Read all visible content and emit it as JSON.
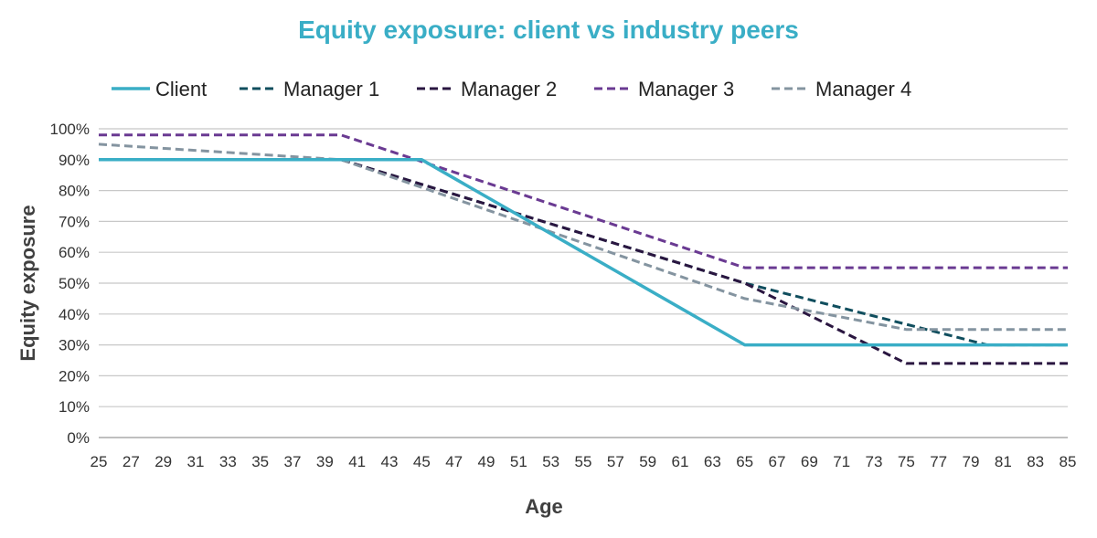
{
  "chart_data": {
    "type": "line",
    "title": "Equity exposure: client vs industry peers",
    "xlabel": "Age",
    "ylabel": "Equity exposure",
    "x_ticks": [
      25,
      27,
      29,
      31,
      33,
      35,
      37,
      39,
      41,
      43,
      45,
      47,
      49,
      51,
      53,
      55,
      57,
      59,
      61,
      63,
      65,
      67,
      69,
      71,
      73,
      75,
      77,
      79,
      81,
      83,
      85
    ],
    "xlim": [
      25,
      85
    ],
    "ylim": [
      0,
      100
    ],
    "y_ticks": [
      "0%",
      "10%",
      "20%",
      "30%",
      "40%",
      "50%",
      "60%",
      "70%",
      "80%",
      "90%",
      "100%"
    ],
    "grid": "horizontal",
    "legend_position": "top",
    "series": [
      {
        "name": "Client",
        "color": "#3aaec6",
        "style": "solid",
        "x": [
          25,
          45,
          65,
          85
        ],
        "y": [
          90,
          90,
          30,
          30
        ]
      },
      {
        "name": "Manager 1",
        "color": "#104e5e",
        "style": "dashed",
        "x": [
          25,
          40,
          65,
          80,
          85
        ],
        "y": [
          90,
          90,
          50,
          30,
          30
        ]
      },
      {
        "name": "Manager 2",
        "color": "#2a1640",
        "style": "dashed",
        "x": [
          25,
          40,
          65,
          75,
          85
        ],
        "y": [
          90,
          90,
          50,
          24,
          24
        ]
      },
      {
        "name": "Manager 3",
        "color": "#6a3a92",
        "style": "dashed",
        "x": [
          25,
          40,
          65,
          85
        ],
        "y": [
          98,
          98,
          55,
          55
        ]
      },
      {
        "name": "Manager 4",
        "color": "#8494a0",
        "style": "dashed",
        "x": [
          25,
          40,
          65,
          75,
          85
        ],
        "y": [
          95,
          90,
          45,
          35,
          35
        ]
      }
    ],
    "colors": {
      "title": "#3aaec6",
      "grid": "#c8c8c8",
      "axis": "#999999"
    }
  }
}
